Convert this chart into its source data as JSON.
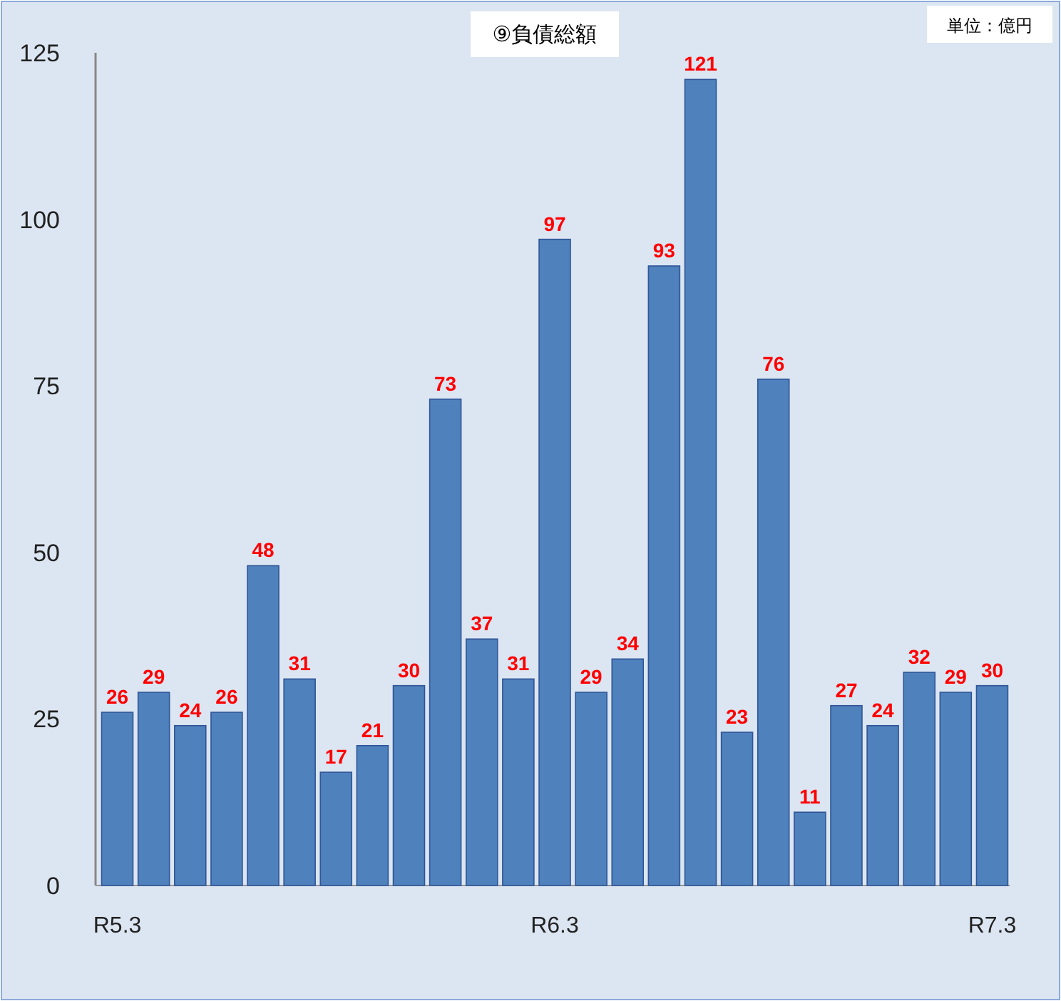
{
  "chart_data": {
    "type": "bar",
    "title": "⑨負債総額",
    "annotations": [
      "単位：億円"
    ],
    "categories": [
      "R5.3",
      null,
      null,
      null,
      null,
      null,
      null,
      null,
      null,
      null,
      null,
      null,
      "R6.3",
      null,
      null,
      null,
      null,
      null,
      null,
      null,
      null,
      null,
      null,
      null,
      "R7.3"
    ],
    "values": [
      26,
      29,
      24,
      26,
      48,
      31,
      17,
      21,
      30,
      73,
      37,
      31,
      97,
      29,
      34,
      93,
      121,
      23,
      76,
      11,
      27,
      24,
      32,
      29,
      30
    ],
    "color": "#4f81bd",
    "ylim": [
      0,
      125
    ],
    "yticks": [
      0,
      25,
      50,
      75,
      100,
      125
    ],
    "grid": false,
    "data_labels": true
  }
}
